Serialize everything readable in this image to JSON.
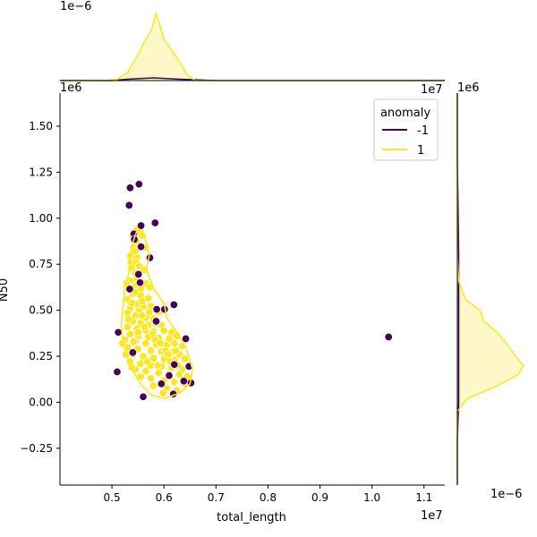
{
  "chart_data": {
    "type": "scatter",
    "subtype": "jointplot (scatter + kde contours + marginal kde)",
    "xlabel": "total_length",
    "ylabel": "N50",
    "x_offset_label": "1e7",
    "y_offset_label": "1e6",
    "top_marginal_offset_label": "1e−6",
    "right_marginal_offset_label": "1e−6",
    "x_corner_label": "1e7",
    "y_corner_label": "1e6",
    "xlim": [
      0.4,
      1.14
    ],
    "ylim": [
      -0.45,
      1.68
    ],
    "x_ticks": [
      0.5,
      0.6,
      0.7,
      0.8,
      0.9,
      1.0,
      1.1
    ],
    "x_tick_labels": [
      "0.5",
      "0.6",
      "0.7",
      "0.8",
      "0.9",
      "1.0",
      "1.1"
    ],
    "y_ticks": [
      -0.25,
      0.0,
      0.25,
      0.5,
      0.75,
      1.0,
      1.25,
      1.5
    ],
    "y_tick_labels": [
      "−0.25",
      "0.00",
      "0.25",
      "0.50",
      "0.75",
      "1.00",
      "1.25",
      "1.50"
    ],
    "legend": {
      "title": "anomaly",
      "placement": "upper right",
      "entries": [
        {
          "label": "-1",
          "color": "#440154"
        },
        {
          "label": "1",
          "color": "#fde725"
        }
      ]
    },
    "colors": {
      "anomaly": "#440154",
      "normal": "#fde725",
      "fill": "#fef7c8",
      "outline": "#ffffff"
    },
    "series": [
      {
        "name": "-1",
        "points": [
          [
            0.552,
            1.185
          ],
          [
            0.535,
            1.165
          ],
          [
            0.533,
            1.07
          ],
          [
            0.583,
            0.975
          ],
          [
            0.542,
            0.915
          ],
          [
            0.543,
            0.885
          ],
          [
            0.556,
            0.96
          ],
          [
            0.556,
            0.845
          ],
          [
            0.573,
            0.785
          ],
          [
            0.551,
            0.695
          ],
          [
            0.554,
            0.65
          ],
          [
            0.534,
            0.615
          ],
          [
            0.586,
            0.505
          ],
          [
            0.601,
            0.505
          ],
          [
            0.619,
            0.53
          ],
          [
            0.585,
            0.44
          ],
          [
            0.512,
            0.38
          ],
          [
            0.642,
            0.345
          ],
          [
            0.54,
            0.27
          ],
          [
            0.648,
            0.195
          ],
          [
            0.62,
            0.205
          ],
          [
            0.61,
            0.145
          ],
          [
            0.595,
            0.1
          ],
          [
            0.638,
            0.115
          ],
          [
            0.652,
            0.105
          ],
          [
            0.51,
            0.165
          ],
          [
            0.56,
            0.03
          ],
          [
            0.618,
            0.045
          ],
          [
            1.032,
            0.355
          ]
        ]
      },
      {
        "name": "1",
        "points": [
          [
            0.548,
            0.94
          ],
          [
            0.555,
            0.925
          ],
          [
            0.54,
            0.905
          ],
          [
            0.558,
            0.905
          ],
          [
            0.547,
            0.875
          ],
          [
            0.542,
            0.84
          ],
          [
            0.564,
            0.84
          ],
          [
            0.545,
            0.82
          ],
          [
            0.535,
            0.795
          ],
          [
            0.548,
            0.785
          ],
          [
            0.536,
            0.765
          ],
          [
            0.545,
            0.76
          ],
          [
            0.552,
            0.74
          ],
          [
            0.562,
            0.72
          ],
          [
            0.538,
            0.73
          ],
          [
            0.545,
            0.7
          ],
          [
            0.535,
            0.66
          ],
          [
            0.548,
            0.67
          ],
          [
            0.565,
            0.645
          ],
          [
            0.528,
            0.645
          ],
          [
            0.545,
            0.63
          ],
          [
            0.573,
            0.625
          ],
          [
            0.54,
            0.59
          ],
          [
            0.555,
            0.58
          ],
          [
            0.57,
            0.565
          ],
          [
            0.53,
            0.56
          ],
          [
            0.548,
            0.535
          ],
          [
            0.56,
            0.52
          ],
          [
            0.575,
            0.52
          ],
          [
            0.535,
            0.51
          ],
          [
            0.552,
            0.495
          ],
          [
            0.59,
            0.49
          ],
          [
            0.53,
            0.485
          ],
          [
            0.545,
            0.47
          ],
          [
            0.565,
            0.46
          ],
          [
            0.58,
            0.455
          ],
          [
            0.54,
            0.44
          ],
          [
            0.555,
            0.43
          ],
          [
            0.57,
            0.42
          ],
          [
            0.595,
            0.42
          ],
          [
            0.53,
            0.41
          ],
          [
            0.548,
            0.4
          ],
          [
            0.565,
            0.39
          ],
          [
            0.58,
            0.385
          ],
          [
            0.6,
            0.39
          ],
          [
            0.615,
            0.38
          ],
          [
            0.535,
            0.37
          ],
          [
            0.55,
            0.36
          ],
          [
            0.57,
            0.355
          ],
          [
            0.59,
            0.35
          ],
          [
            0.61,
            0.345
          ],
          [
            0.625,
            0.36
          ],
          [
            0.525,
            0.34
          ],
          [
            0.545,
            0.33
          ],
          [
            0.565,
            0.32
          ],
          [
            0.585,
            0.315
          ],
          [
            0.605,
            0.31
          ],
          [
            0.62,
            0.32
          ],
          [
            0.635,
            0.305
          ],
          [
            0.53,
            0.3
          ],
          [
            0.55,
            0.29
          ],
          [
            0.575,
            0.28
          ],
          [
            0.595,
            0.275
          ],
          [
            0.615,
            0.27
          ],
          [
            0.63,
            0.26
          ],
          [
            0.54,
            0.26
          ],
          [
            0.56,
            0.25
          ],
          [
            0.58,
            0.24
          ],
          [
            0.6,
            0.235
          ],
          [
            0.62,
            0.23
          ],
          [
            0.64,
            0.235
          ],
          [
            0.535,
            0.22
          ],
          [
            0.555,
            0.21
          ],
          [
            0.575,
            0.2
          ],
          [
            0.595,
            0.195
          ],
          [
            0.615,
            0.19
          ],
          [
            0.635,
            0.18
          ],
          [
            0.545,
            0.18
          ],
          [
            0.565,
            0.17
          ],
          [
            0.59,
            0.16
          ],
          [
            0.61,
            0.155
          ],
          [
            0.63,
            0.15
          ],
          [
            0.645,
            0.14
          ],
          [
            0.555,
            0.14
          ],
          [
            0.575,
            0.13
          ],
          [
            0.6,
            0.12
          ],
          [
            0.62,
            0.11
          ],
          [
            0.64,
            0.1
          ],
          [
            0.58,
            0.09
          ],
          [
            0.605,
            0.075
          ],
          [
            0.625,
            0.065
          ],
          [
            0.598,
            0.05
          ],
          [
            0.52,
            0.32
          ],
          [
            0.527,
            0.26
          ],
          [
            0.538,
            0.19
          ],
          [
            0.542,
            0.33
          ],
          [
            0.583,
            0.34
          ],
          [
            0.603,
            0.28
          ],
          [
            0.568,
            0.22
          ],
          [
            0.588,
            0.2
          ],
          [
            0.612,
            0.22
          ],
          [
            0.627,
            0.2
          ],
          [
            0.55,
            0.38
          ],
          [
            0.563,
            0.41
          ],
          [
            0.578,
            0.37
          ],
          [
            0.593,
            0.32
          ],
          [
            0.608,
            0.26
          ],
          [
            0.622,
            0.28
          ],
          [
            0.532,
            0.45
          ],
          [
            0.558,
            0.47
          ],
          [
            0.572,
            0.49
          ],
          [
            0.584,
            0.43
          ],
          [
            0.558,
            0.55
          ],
          [
            0.538,
            0.54
          ],
          [
            0.545,
            0.6
          ],
          [
            0.556,
            0.62
          ]
        ]
      }
    ],
    "kde_contour_normal": [
      [
        0.549,
        0.94
      ],
      [
        0.562,
        0.91
      ],
      [
        0.572,
        0.8
      ],
      [
        0.566,
        0.72
      ],
      [
        0.58,
        0.62
      ],
      [
        0.601,
        0.53
      ],
      [
        0.605,
        0.46
      ],
      [
        0.62,
        0.4
      ],
      [
        0.642,
        0.3
      ],
      [
        0.655,
        0.18
      ],
      [
        0.65,
        0.1
      ],
      [
        0.63,
        0.05
      ],
      [
        0.6,
        0.02
      ],
      [
        0.575,
        0.04
      ],
      [
        0.555,
        0.1
      ],
      [
        0.54,
        0.17
      ],
      [
        0.528,
        0.25
      ],
      [
        0.521,
        0.33
      ],
      [
        0.518,
        0.42
      ],
      [
        0.521,
        0.52
      ],
      [
        0.525,
        0.62
      ],
      [
        0.532,
        0.7
      ],
      [
        0.534,
        0.78
      ],
      [
        0.539,
        0.86
      ],
      [
        0.549,
        0.94
      ]
    ],
    "marginal_x_kde": {
      "normal": [
        [
          0.4,
          0.0
        ],
        [
          0.48,
          0.0
        ],
        [
          0.51,
          0.02
        ],
        [
          0.53,
          0.12
        ],
        [
          0.55,
          0.38
        ],
        [
          0.565,
          0.62
        ],
        [
          0.575,
          0.74
        ],
        [
          0.585,
          1.0
        ],
        [
          0.59,
          0.88
        ],
        [
          0.6,
          0.62
        ],
        [
          0.615,
          0.45
        ],
        [
          0.63,
          0.28
        ],
        [
          0.645,
          0.08
        ],
        [
          0.66,
          0.0
        ],
        [
          1.14,
          0.0
        ]
      ],
      "anomaly": [
        [
          0.4,
          0.0
        ],
        [
          0.5,
          0.0
        ],
        [
          0.53,
          0.02
        ],
        [
          0.58,
          0.04
        ],
        [
          0.63,
          0.02
        ],
        [
          0.7,
          0.0
        ],
        [
          1.14,
          0.0
        ]
      ]
    },
    "marginal_y_kde": {
      "normal": [
        [
          -0.45,
          0.0
        ],
        [
          -0.05,
          0.0
        ],
        [
          0.02,
          0.15
        ],
        [
          0.08,
          0.55
        ],
        [
          0.15,
          0.92
        ],
        [
          0.2,
          1.0
        ],
        [
          0.25,
          0.88
        ],
        [
          0.32,
          0.74
        ],
        [
          0.38,
          0.6
        ],
        [
          0.44,
          0.4
        ],
        [
          0.5,
          0.34
        ],
        [
          0.56,
          0.12
        ],
        [
          0.66,
          0.02
        ],
        [
          0.8,
          0.0
        ],
        [
          1.68,
          0.0
        ]
      ],
      "anomaly": [
        [
          -0.45,
          0.0
        ],
        [
          -0.2,
          0.0
        ],
        [
          0.0,
          0.02
        ],
        [
          0.4,
          0.02
        ],
        [
          0.8,
          0.02
        ],
        [
          1.1,
          0.01
        ],
        [
          1.3,
          0.0
        ],
        [
          1.68,
          0.0
        ]
      ]
    }
  }
}
